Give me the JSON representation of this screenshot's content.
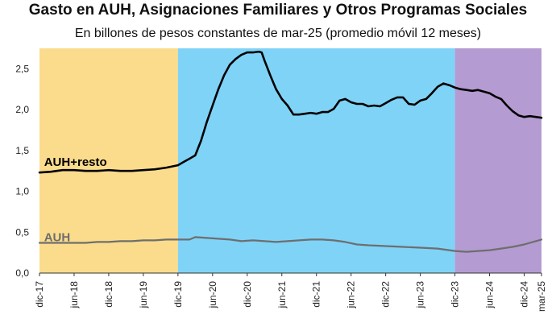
{
  "chart_data": {
    "type": "line",
    "title": "Gasto en AUH, Asignaciones Familiares y Otros Programas Sociales",
    "subtitle": "En billones de pesos constantes de mar-25 (promedio móvil 12 meses)",
    "ylim": [
      0,
      2.75
    ],
    "yticks": [
      "0,0",
      "0,5",
      "1,0",
      "1,5",
      "2,0",
      "2,5"
    ],
    "ytick_values": [
      0,
      0.5,
      1.0,
      1.5,
      2.0,
      2.5
    ],
    "xtick_labels": [
      "dic-17",
      "jun-18",
      "dic-18",
      "jun-19",
      "dic-19",
      "jun-20",
      "dic-20",
      "jun-21",
      "dic-21",
      "jun-22",
      "dic-22",
      "jun-23",
      "dic-23",
      "jun-24",
      "dic-24",
      "mar-25"
    ],
    "xtick_months": [
      0,
      6,
      12,
      18,
      24,
      30,
      36,
      42,
      48,
      54,
      60,
      66,
      72,
      78,
      84,
      87
    ],
    "x_domain_months": [
      0,
      87
    ],
    "periods": [
      {
        "start": 0,
        "end": 24,
        "color": "#FBDC8C"
      },
      {
        "start": 24,
        "end": 72,
        "color": "#7FD3F7"
      },
      {
        "start": 72,
        "end": 87,
        "color": "#B49BD2"
      }
    ],
    "series": [
      {
        "name": "AUH+resto",
        "color": "#000000",
        "points": [
          [
            0,
            1.23
          ],
          [
            2,
            1.24
          ],
          [
            4,
            1.26
          ],
          [
            6,
            1.26
          ],
          [
            8,
            1.25
          ],
          [
            10,
            1.25
          ],
          [
            12,
            1.26
          ],
          [
            14,
            1.25
          ],
          [
            16,
            1.25
          ],
          [
            18,
            1.26
          ],
          [
            20,
            1.27
          ],
          [
            22,
            1.29
          ],
          [
            24,
            1.32
          ],
          [
            25,
            1.36
          ],
          [
            26,
            1.4
          ],
          [
            27,
            1.44
          ],
          [
            28,
            1.62
          ],
          [
            29,
            1.85
          ],
          [
            30,
            2.05
          ],
          [
            31,
            2.25
          ],
          [
            32,
            2.42
          ],
          [
            33,
            2.55
          ],
          [
            34,
            2.62
          ],
          [
            35,
            2.67
          ],
          [
            36,
            2.7
          ],
          [
            37,
            2.7
          ],
          [
            38,
            2.71
          ],
          [
            38.5,
            2.7
          ],
          [
            39,
            2.6
          ],
          [
            40,
            2.42
          ],
          [
            41,
            2.25
          ],
          [
            42,
            2.13
          ],
          [
            43,
            2.05
          ],
          [
            44,
            1.94
          ],
          [
            45,
            1.94
          ],
          [
            46,
            1.95
          ],
          [
            47,
            1.96
          ],
          [
            48,
            1.95
          ],
          [
            49,
            1.97
          ],
          [
            50,
            1.97
          ],
          [
            51,
            2.01
          ],
          [
            52,
            2.11
          ],
          [
            53,
            2.13
          ],
          [
            54,
            2.09
          ],
          [
            55,
            2.07
          ],
          [
            56,
            2.07
          ],
          [
            57,
            2.04
          ],
          [
            58,
            2.05
          ],
          [
            59,
            2.04
          ],
          [
            60,
            2.08
          ],
          [
            61,
            2.12
          ],
          [
            62,
            2.15
          ],
          [
            63,
            2.15
          ],
          [
            64,
            2.07
          ],
          [
            65,
            2.06
          ],
          [
            66,
            2.11
          ],
          [
            67,
            2.13
          ],
          [
            68,
            2.2
          ],
          [
            69,
            2.28
          ],
          [
            70,
            2.32
          ],
          [
            71,
            2.3
          ],
          [
            72,
            2.27
          ],
          [
            73,
            2.25
          ],
          [
            74,
            2.24
          ],
          [
            75,
            2.23
          ],
          [
            76,
            2.24
          ],
          [
            77,
            2.22
          ],
          [
            78,
            2.2
          ],
          [
            79,
            2.16
          ],
          [
            80,
            2.13
          ],
          [
            81,
            2.05
          ],
          [
            82,
            1.98
          ],
          [
            83,
            1.93
          ],
          [
            84,
            1.91
          ],
          [
            85,
            1.92
          ],
          [
            86,
            1.91
          ],
          [
            87,
            1.9
          ]
        ]
      },
      {
        "name": "AUH",
        "color": "#6E6E6E",
        "points": [
          [
            0,
            0.37
          ],
          [
            4,
            0.37
          ],
          [
            8,
            0.37
          ],
          [
            10,
            0.38
          ],
          [
            12,
            0.38
          ],
          [
            14,
            0.39
          ],
          [
            16,
            0.39
          ],
          [
            18,
            0.4
          ],
          [
            20,
            0.4
          ],
          [
            22,
            0.41
          ],
          [
            24,
            0.41
          ],
          [
            26,
            0.41
          ],
          [
            27,
            0.44
          ],
          [
            29,
            0.43
          ],
          [
            31,
            0.42
          ],
          [
            33,
            0.41
          ],
          [
            35,
            0.39
          ],
          [
            37,
            0.4
          ],
          [
            39,
            0.39
          ],
          [
            41,
            0.38
          ],
          [
            43,
            0.39
          ],
          [
            45,
            0.4
          ],
          [
            47,
            0.41
          ],
          [
            49,
            0.41
          ],
          [
            51,
            0.4
          ],
          [
            53,
            0.38
          ],
          [
            55,
            0.35
          ],
          [
            57,
            0.34
          ],
          [
            60,
            0.33
          ],
          [
            63,
            0.32
          ],
          [
            66,
            0.31
          ],
          [
            69,
            0.3
          ],
          [
            72,
            0.27
          ],
          [
            74,
            0.26
          ],
          [
            76,
            0.27
          ],
          [
            78,
            0.28
          ],
          [
            80,
            0.3
          ],
          [
            82,
            0.32
          ],
          [
            84,
            0.35
          ],
          [
            86,
            0.39
          ],
          [
            87,
            0.41
          ]
        ]
      }
    ]
  }
}
